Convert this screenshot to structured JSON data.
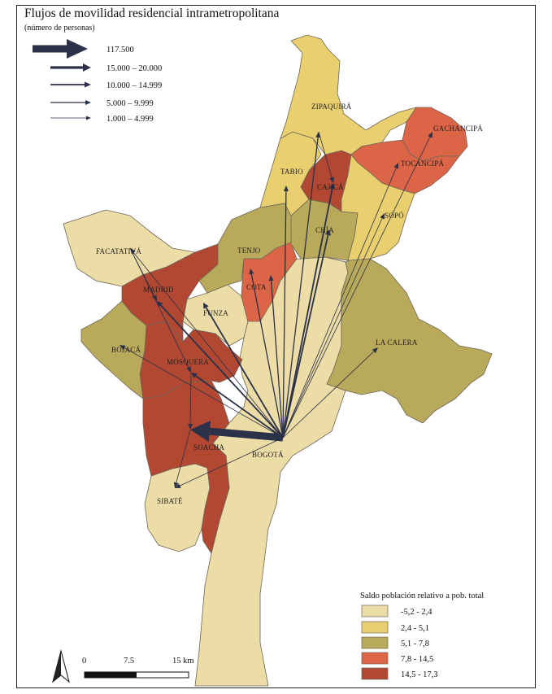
{
  "title": "Flujos de movilidad residencial intrametropolitana",
  "subtitle": "(número de personas)",
  "flow_legend": [
    {
      "label": "117.500"
    },
    {
      "label": "15.000 – 20.000"
    },
    {
      "label": "10.000 – 14.999"
    },
    {
      "label": "5.000 – 9.999"
    },
    {
      "label": "1.000 – 4.999"
    }
  ],
  "classes": {
    "title": "Saldo población relativo a pob. total",
    "items": [
      {
        "label": "-5,2 - 2,4",
        "color": "#ecdca6"
      },
      {
        "label": "2,4 - 5,1",
        "color": "#e9cf6e"
      },
      {
        "label": "5,1 - 7,8",
        "color": "#b9a95a"
      },
      {
        "label": "7,8 - 14,5",
        "color": "#dd6547"
      },
      {
        "label": "14,5 - 17,3",
        "color": "#b24832"
      }
    ]
  },
  "municipalities": [
    {
      "name": "ZIPAQUIRÁ",
      "class": 1
    },
    {
      "name": "GACHANCIPÁ",
      "class": 3
    },
    {
      "name": "TOCANCIPÁ",
      "class": 3
    },
    {
      "name": "TABIO",
      "class": 1
    },
    {
      "name": "CAJICÁ",
      "class": 4
    },
    {
      "name": "SOPÓ",
      "class": 1
    },
    {
      "name": "CHÍA",
      "class": 2
    },
    {
      "name": "TENJO",
      "class": 2
    },
    {
      "name": "FACATATIVÁ",
      "class": 0
    },
    {
      "name": "COTA",
      "class": 3
    },
    {
      "name": "MADRID",
      "class": 4
    },
    {
      "name": "FUNZA",
      "class": 0
    },
    {
      "name": "LA CALERA",
      "class": 2
    },
    {
      "name": "BOJACÁ",
      "class": 2
    },
    {
      "name": "MOSQUERA",
      "class": 4
    },
    {
      "name": "SOACHA",
      "class": 4
    },
    {
      "name": "BOGOTÁ",
      "class": 0
    },
    {
      "name": "SIBATÉ",
      "class": 0
    }
  ],
  "flows": [
    {
      "from": "BOGOTÁ",
      "to": "SOACHA",
      "class": 0
    },
    {
      "from": "BOGOTÁ",
      "to": "MADRID",
      "class": 2
    },
    {
      "from": "BOGOTÁ",
      "to": "MOSQUERA",
      "class": 2
    },
    {
      "from": "BOGOTÁ",
      "to": "FUNZA",
      "class": 2
    },
    {
      "from": "BOGOTÁ",
      "to": "CHÍA",
      "class": 2
    },
    {
      "from": "BOGOTÁ",
      "to": "CAJICÁ",
      "class": 2
    },
    {
      "from": "BOGOTÁ",
      "to": "ZIPAQUIRÁ",
      "class": 3
    },
    {
      "from": "BOGOTÁ",
      "to": "COTA",
      "class": 3
    },
    {
      "from": "BOGOTÁ",
      "to": "TENJO",
      "class": 3
    },
    {
      "from": "BOGOTÁ",
      "to": "TABIO",
      "class": 3
    },
    {
      "from": "BOGOTÁ",
      "to": "GACHANCIPÁ",
      "class": 4
    },
    {
      "from": "BOGOTÁ",
      "to": "TOCANCIPÁ",
      "class": 4
    },
    {
      "from": "BOGOTÁ",
      "to": "SOPÓ",
      "class": 4
    },
    {
      "from": "BOGOTÁ",
      "to": "LA CALERA",
      "class": 4
    },
    {
      "from": "BOGOTÁ",
      "to": "FACATATIVÁ",
      "class": 4
    },
    {
      "from": "BOGOTÁ",
      "to": "BOJACÁ",
      "class": 4
    },
    {
      "from": "BOGOTÁ",
      "to": "SIBATÉ",
      "class": 4
    },
    {
      "from": "SOACHA",
      "to": "SIBATÉ",
      "class": 4
    },
    {
      "from": "FACATATIVÁ",
      "to": "MADRID",
      "class": 4
    },
    {
      "from": "FACATATIVÁ",
      "to": "MOSQUERA",
      "class": 4
    },
    {
      "from": "MOSQUERA",
      "to": "SOACHA",
      "class": 4
    },
    {
      "from": "ZIPAQUIRÁ",
      "to": "CAJICÁ",
      "class": 4
    }
  ],
  "scale": {
    "ticks": [
      "0",
      "7.5",
      "15 km"
    ]
  }
}
